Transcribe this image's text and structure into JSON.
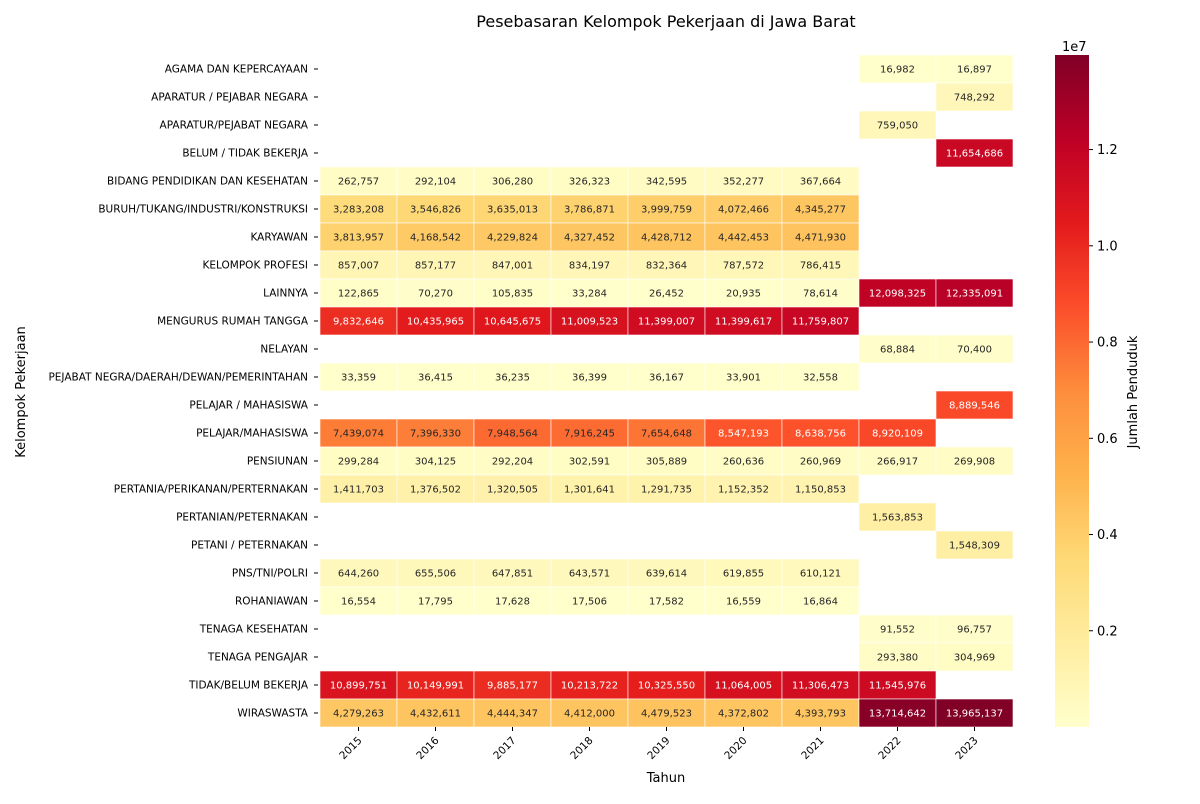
{
  "chart_data": {
    "type": "heatmap",
    "title": "Pesebasaran Kelompok Pekerjaan di Jawa Barat",
    "xlabel": "Tahun",
    "ylabel": "Kelompok Pekerjaan",
    "colorbar_label": "Jumlah Penduduk",
    "colorbar_exponent": "1e7",
    "colorbar_ticks": [
      {
        "value": 2000000,
        "label": "0.2"
      },
      {
        "value": 4000000,
        "label": "0.4"
      },
      {
        "value": 6000000,
        "label": "0.6"
      },
      {
        "value": 8000000,
        "label": "0.8"
      },
      {
        "value": 10000000,
        "label": "1.0"
      },
      {
        "value": 12000000,
        "label": "1.2"
      }
    ],
    "value_range": [
      0,
      13965137
    ],
    "colormap": "YlOrRd",
    "colormap_stops": [
      "#ffffcc",
      "#ffeda0",
      "#fed976",
      "#feb24c",
      "#fd8d3c",
      "#fc4e2a",
      "#e31a1c",
      "#bd0026",
      "#800026"
    ],
    "x": [
      "2015",
      "2016",
      "2017",
      "2018",
      "2019",
      "2020",
      "2021",
      "2022",
      "2023"
    ],
    "y": [
      "AGAMA DAN KEPERCAYAAN",
      "APARATUR / PEJABAR NEGARA",
      "APARATUR/PEJABAT NEGARA",
      "BELUM / TIDAK BEKERJA",
      "BIDANG PENDIDIKAN DAN KESEHATAN",
      "BURUH/TUKANG/INDUSTRI/KONSTRUKSI",
      "KARYAWAN",
      "KELOMPOK PROFESI",
      "LAINNYA",
      "MENGURUS RUMAH TANGGA",
      "NELAYAN",
      "PEJABAT NEGRA/DAERAH/DEWAN/PEMERINTAHAN",
      "PELAJAR / MAHASISWA",
      "PELAJAR/MAHASISWA",
      "PENSIUNAN",
      "PERTANIA/PERIKANAN/PERTERNAKAN",
      "PERTANIAN/PETERNAKAN",
      "PETANI / PETERNAKAN",
      "PNS/TNI/POLRI",
      "ROHANIAWAN",
      "TENAGA KESEHATAN",
      "TENAGA PENGAJAR",
      "TIDAK/BELUM BEKERJA",
      "WIRASWASTA"
    ],
    "values": [
      [
        null,
        null,
        null,
        null,
        null,
        null,
        null,
        16982,
        16897
      ],
      [
        null,
        null,
        null,
        null,
        null,
        null,
        null,
        null,
        748292
      ],
      [
        null,
        null,
        null,
        null,
        null,
        null,
        null,
        759050,
        null
      ],
      [
        null,
        null,
        null,
        null,
        null,
        null,
        null,
        null,
        11654686
      ],
      [
        262757,
        292104,
        306280,
        326323,
        342595,
        352277,
        367664,
        null,
        null
      ],
      [
        3283208,
        3546826,
        3635013,
        3786871,
        3999759,
        4072466,
        4345277,
        null,
        null
      ],
      [
        3813957,
        4168542,
        4229824,
        4327452,
        4428712,
        4442453,
        4471930,
        null,
        null
      ],
      [
        857007,
        857177,
        847001,
        834197,
        832364,
        787572,
        786415,
        null,
        null
      ],
      [
        122865,
        70270,
        105835,
        33284,
        26452,
        20935,
        78614,
        12098325,
        12335091
      ],
      [
        9832646,
        10435965,
        10645675,
        11009523,
        11399007,
        11399617,
        11759807,
        null,
        null
      ],
      [
        null,
        null,
        null,
        null,
        null,
        null,
        null,
        68884,
        70400
      ],
      [
        33359,
        36415,
        36235,
        36399,
        36167,
        33901,
        32558,
        null,
        null
      ],
      [
        null,
        null,
        null,
        null,
        null,
        null,
        null,
        null,
        8889546
      ],
      [
        7439074,
        7396330,
        7948564,
        7916245,
        7654648,
        8547193,
        8638756,
        8920109,
        null
      ],
      [
        299284,
        304125,
        292204,
        302591,
        305889,
        260636,
        260969,
        266917,
        269908
      ],
      [
        1411703,
        1376502,
        1320505,
        1301641,
        1291735,
        1152352,
        1150853,
        null,
        null
      ],
      [
        null,
        null,
        null,
        null,
        null,
        null,
        null,
        1563853,
        null
      ],
      [
        null,
        null,
        null,
        null,
        null,
        null,
        null,
        null,
        1548309
      ],
      [
        644260,
        655506,
        647851,
        643571,
        639614,
        619855,
        610121,
        null,
        null
      ],
      [
        16554,
        17795,
        17628,
        17506,
        17582,
        16559,
        16864,
        null,
        null
      ],
      [
        null,
        null,
        null,
        null,
        null,
        null,
        null,
        91552,
        96757
      ],
      [
        null,
        null,
        null,
        null,
        null,
        null,
        null,
        293380,
        304969
      ],
      [
        10899751,
        10149991,
        9885177,
        10213722,
        10325550,
        11064005,
        11306473,
        11545976,
        null
      ],
      [
        4279263,
        4432611,
        4444347,
        4412000,
        4479523,
        4372802,
        4393793,
        13714642,
        13965137
      ]
    ]
  }
}
